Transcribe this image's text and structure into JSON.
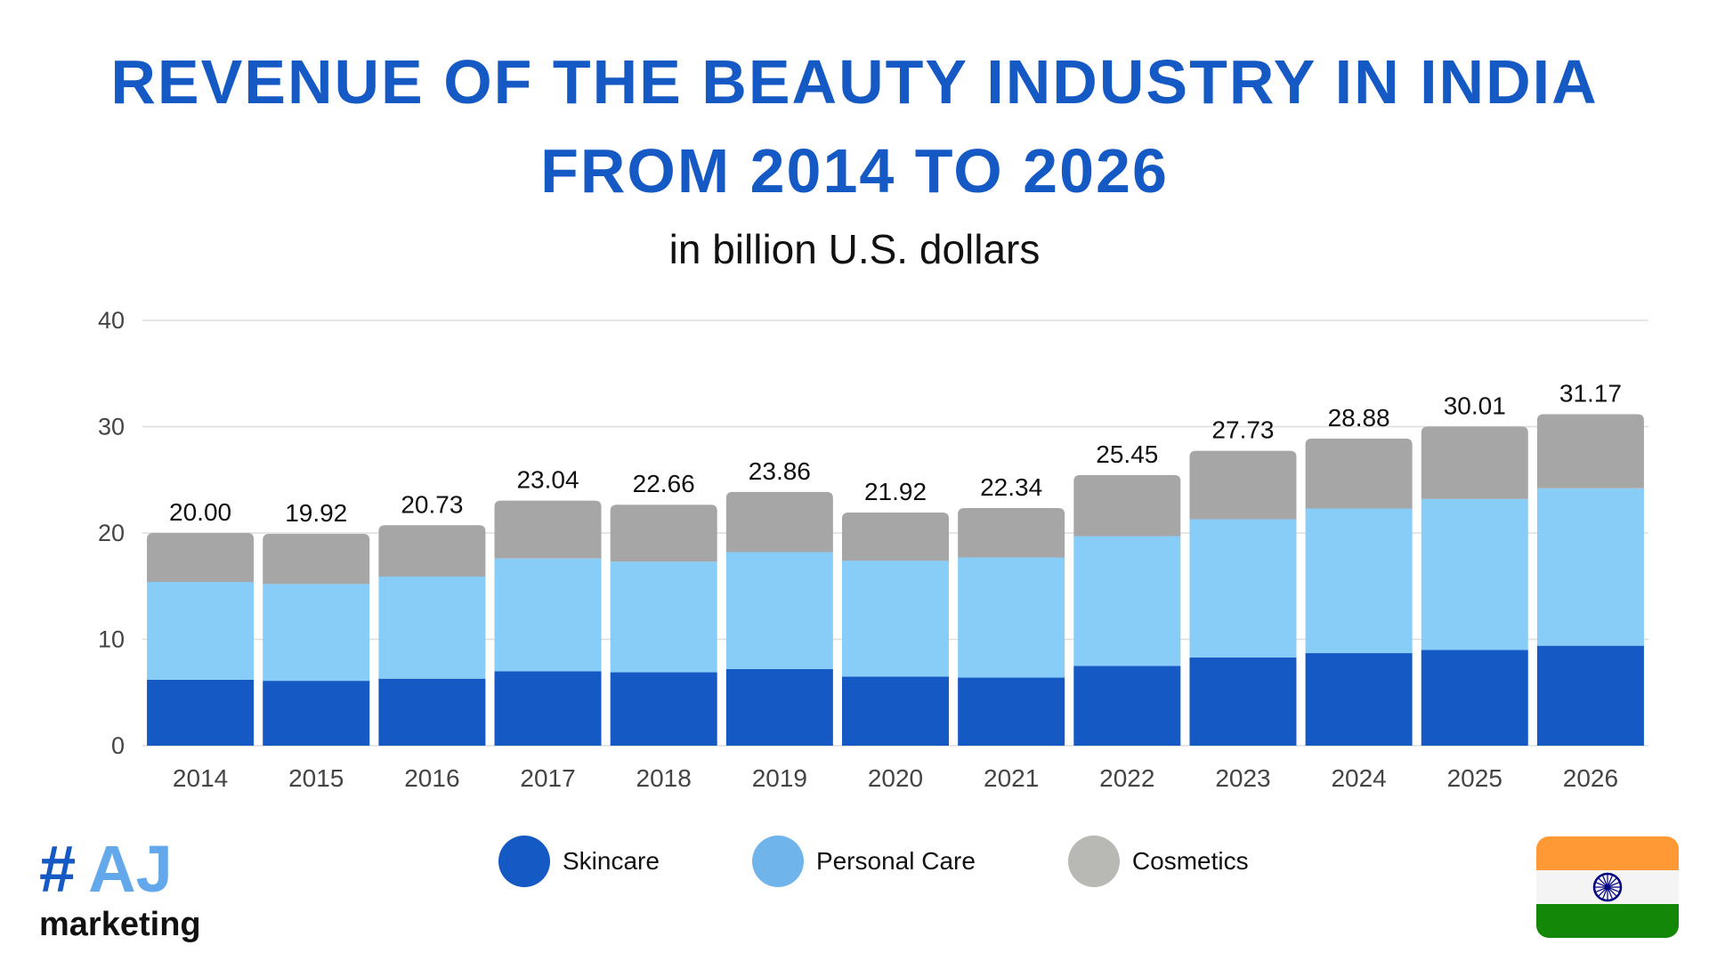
{
  "title_line1": "REVENUE OF THE BEAUTY INDUSTRY IN INDIA",
  "title_line2": "FROM 2014 TO 2026",
  "subtitle": "in billion U.S. dollars",
  "colors": {
    "title": "#1459c4",
    "skincare": "#1459c4",
    "personal_care": "#87cdf8",
    "cosmetics": "#a6a6a6",
    "gridline": "#dddddd",
    "legend_personal_care": "#6fb5ec",
    "legend_cosmetics": "#b8b8b4"
  },
  "legend": [
    {
      "label": "Skincare",
      "color": "#1459c4"
    },
    {
      "label": "Personal Care",
      "color": "#6fb5ec"
    },
    {
      "label": "Cosmetics",
      "color": "#b8b8b4"
    }
  ],
  "logo": {
    "hash": "#",
    "letters": "AJ",
    "text": "marketing"
  },
  "chart_data": {
    "type": "bar",
    "stacked": true,
    "title": "REVENUE OF THE BEAUTY INDUSTRY IN INDIA FROM 2014 TO 2026",
    "subtitle": "in billion U.S. dollars",
    "categories": [
      "2014",
      "2015",
      "2016",
      "2017",
      "2018",
      "2019",
      "2020",
      "2021",
      "2022",
      "2023",
      "2024",
      "2025",
      "2026"
    ],
    "series": [
      {
        "name": "Skincare",
        "values": [
          6.2,
          6.1,
          6.3,
          7.0,
          6.9,
          7.2,
          6.5,
          6.4,
          7.5,
          8.3,
          8.7,
          9.0,
          9.4
        ]
      },
      {
        "name": "Personal Care",
        "values": [
          9.2,
          9.1,
          9.6,
          10.6,
          10.4,
          11.0,
          10.9,
          11.3,
          12.2,
          13.0,
          13.6,
          14.2,
          14.8
        ]
      },
      {
        "name": "Cosmetics",
        "values": [
          4.6,
          4.72,
          4.83,
          5.44,
          5.36,
          5.66,
          4.52,
          4.64,
          5.75,
          6.43,
          6.58,
          6.81,
          6.97
        ]
      }
    ],
    "totals": [
      "20.00",
      "19.92",
      "20.73",
      "23.04",
      "22.66",
      "23.86",
      "21.92",
      "22.34",
      "25.45",
      "27.73",
      "28.88",
      "30.01",
      "31.17"
    ],
    "yticks": [
      "0",
      "10",
      "20",
      "30",
      "40"
    ],
    "ylim": [
      0,
      40
    ],
    "xlabel": "",
    "ylabel": "",
    "grid": true,
    "legend_position": "bottom"
  }
}
